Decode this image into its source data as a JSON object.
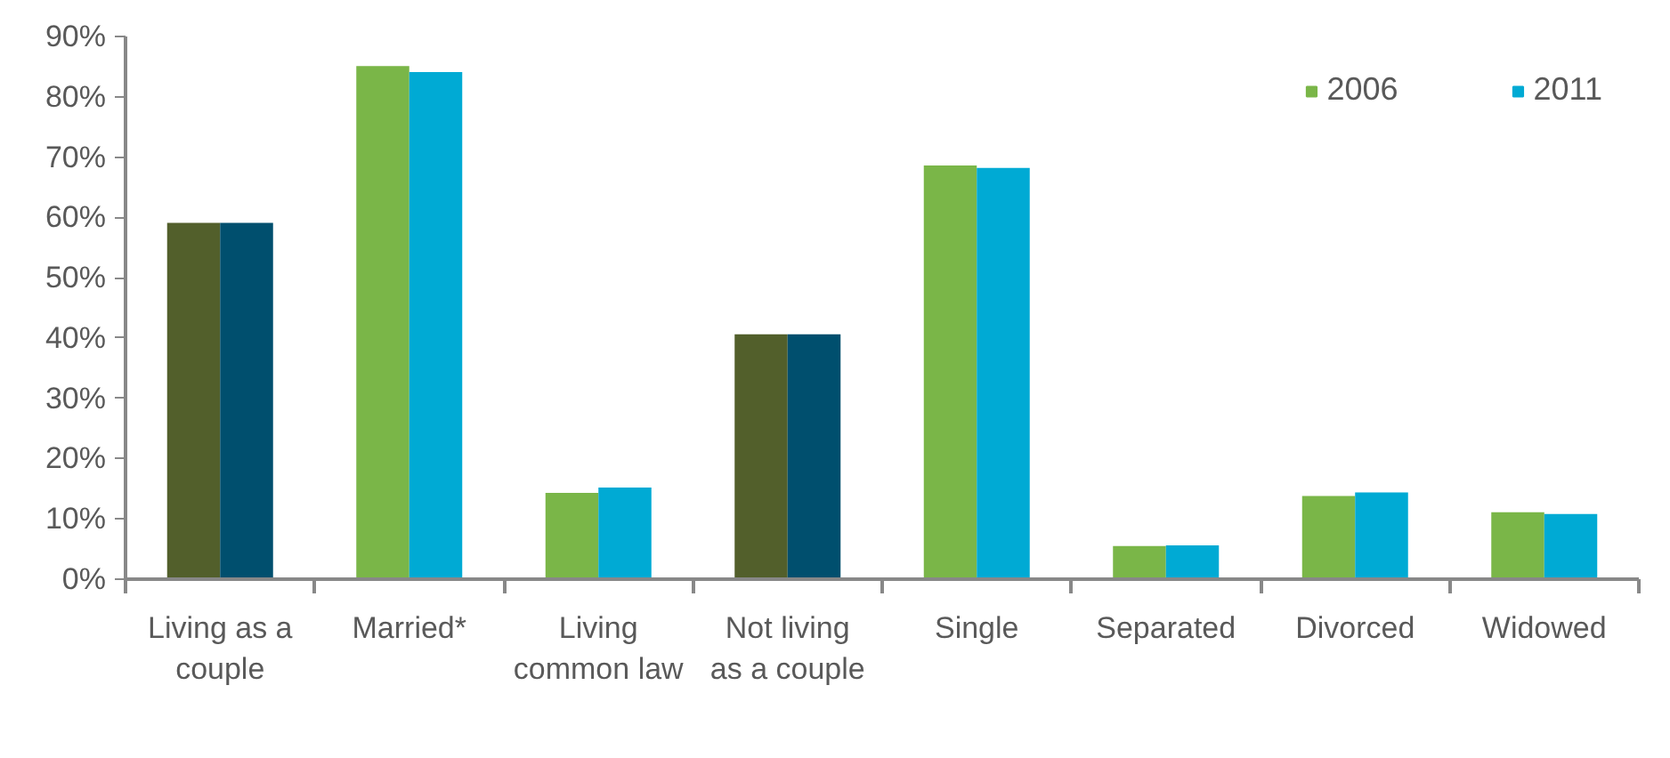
{
  "chart_data": {
    "type": "bar",
    "categories": [
      "Living as a couple",
      "Married*",
      "Living common law",
      "Not living as a couple",
      "Single",
      "Separated",
      "Divorced",
      "Widowed"
    ],
    "series": [
      {
        "name": "2006",
        "color": "#7ab648",
        "colors": [
          "#525f2b",
          "#7ab648",
          "#7ab648",
          "#525f2b",
          "#7ab648",
          "#7ab648",
          "#7ab648",
          "#7ab648"
        ],
        "values": [
          59.1,
          85.1,
          14.3,
          40.6,
          68.6,
          5.5,
          13.8,
          11.1
        ]
      },
      {
        "name": "2011",
        "color": "#00aad4",
        "colors": [
          "#004f6e",
          "#00aad4",
          "#00aad4",
          "#004f6e",
          "#00aad4",
          "#00aad4",
          "#00aad4",
          "#00aad4"
        ],
        "values": [
          59.1,
          84.1,
          15.2,
          40.6,
          68.2,
          5.6,
          14.4,
          10.8
        ]
      }
    ],
    "ylim": [
      0,
      90
    ],
    "yticks": [
      {
        "value": 0,
        "label": "0%"
      },
      {
        "value": 10,
        "label": "10%"
      },
      {
        "value": 20,
        "label": "20%"
      },
      {
        "value": 30,
        "label": "30%"
      },
      {
        "value": 40,
        "label": "40%"
      },
      {
        "value": 50,
        "label": "50%"
      },
      {
        "value": 60,
        "label": "60%"
      },
      {
        "value": 70,
        "label": "70%"
      },
      {
        "value": 80,
        "label": "80%"
      },
      {
        "value": 90,
        "label": "90%"
      }
    ],
    "grid": false,
    "legend": "top right"
  }
}
